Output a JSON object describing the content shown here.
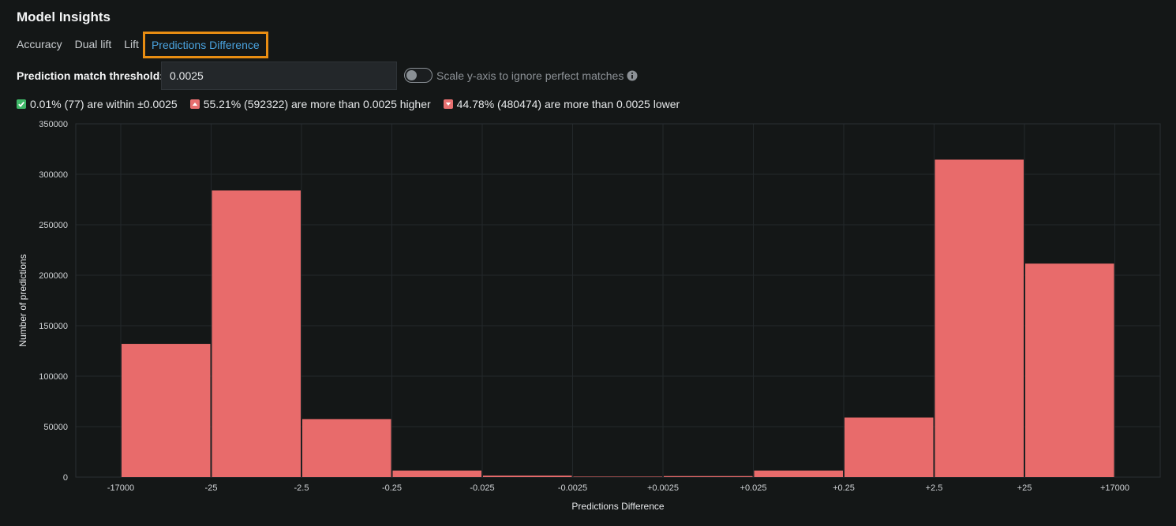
{
  "header": {
    "title": "Model Insights"
  },
  "tabs": [
    {
      "label": "Accuracy",
      "active": false
    },
    {
      "label": "Dual lift",
      "active": false
    },
    {
      "label": "Lift",
      "active": false
    },
    {
      "label": "Predictions Difference",
      "active": true
    }
  ],
  "threshold": {
    "label": "Prediction match threshold:",
    "value": "0.0025"
  },
  "scale_toggle": {
    "label": "Scale y-axis to ignore perfect matches",
    "on": false,
    "info_icon": "info-circle-icon"
  },
  "summary": [
    {
      "icon": "check-square-icon",
      "color": "#3fb868",
      "text": "0.01% (77) are within ±0.0025"
    },
    {
      "icon": "caret-up-square-icon",
      "color": "#e87070",
      "text": "55.21% (592322) are more than 0.0025 higher"
    },
    {
      "icon": "caret-down-square-icon",
      "color": "#e87070",
      "text": "44.78% (480474) are more than 0.0025 lower"
    }
  ],
  "colors": {
    "bar": "#e86b6b",
    "accent": "#4aa3df",
    "highlight": "#e88d12"
  },
  "chart_data": {
    "type": "bar",
    "xlabel": "Predictions Difference",
    "ylabel": "Number of predictions",
    "ylim": [
      0,
      350000
    ],
    "yticks": [
      0,
      50000,
      100000,
      150000,
      200000,
      250000,
      300000,
      350000
    ],
    "x_tick_labels": [
      "-17000",
      "-25",
      "-2.5",
      "-0.25",
      "-0.025",
      "-0.0025",
      "+0.0025",
      "+0.025",
      "+0.25",
      "+2.5",
      "+25",
      "+17000"
    ],
    "bins": [
      {
        "from": "-17000",
        "to": "-25",
        "value": 132000
      },
      {
        "from": "-25",
        "to": "-2.5",
        "value": 284000
      },
      {
        "from": "-2.5",
        "to": "-0.25",
        "value": 57500
      },
      {
        "from": "-0.25",
        "to": "-0.025",
        "value": 6500
      },
      {
        "from": "-0.025",
        "to": "-0.0025",
        "value": 1500
      },
      {
        "from": "-0.0025",
        "to": "+0.0025",
        "value": 77
      },
      {
        "from": "+0.0025",
        "to": "+0.025",
        "value": 1000
      },
      {
        "from": "+0.025",
        "to": "+0.25",
        "value": 6500
      },
      {
        "from": "+0.25",
        "to": "+2.5",
        "value": 59000
      },
      {
        "from": "+2.5",
        "to": "+25",
        "value": 314500
      },
      {
        "from": "+25",
        "to": "+17000",
        "value": 211500
      }
    ],
    "grid": true,
    "legend": "none"
  }
}
